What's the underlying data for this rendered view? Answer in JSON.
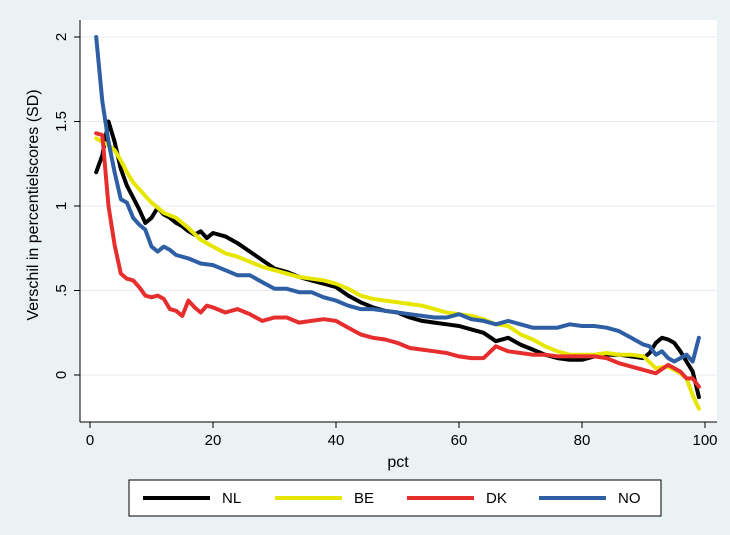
{
  "chart_data": {
    "type": "line",
    "title": "",
    "xlabel": "pct",
    "ylabel": "Verschil in percentielscores (SD)",
    "xlim": [
      0,
      100
    ],
    "ylim": [
      -0.2,
      2
    ],
    "x_ticks": [
      0,
      20,
      40,
      60,
      80,
      100
    ],
    "x_tick_labels": [
      "0",
      "20",
      "40",
      "60",
      "80",
      "100"
    ],
    "y_ticks": [
      0,
      0.5,
      1,
      1.5,
      2
    ],
    "y_tick_labels": [
      "0",
      ".5",
      "1",
      "1.5",
      "2"
    ],
    "grid": true,
    "legend_position": "bottom",
    "series": [
      {
        "name": "NL",
        "color": "#000000",
        "points": [
          [
            1,
            1.2
          ],
          [
            2,
            1.3
          ],
          [
            3,
            1.5
          ],
          [
            4,
            1.38
          ],
          [
            5,
            1.22
          ],
          [
            6,
            1.12
          ],
          [
            7,
            1.05
          ],
          [
            8,
            0.98
          ],
          [
            9,
            0.9
          ],
          [
            10,
            0.93
          ],
          [
            11,
            0.99
          ],
          [
            12,
            0.95
          ],
          [
            13,
            0.93
          ],
          [
            14,
            0.9
          ],
          [
            15,
            0.88
          ],
          [
            16,
            0.85
          ],
          [
            17,
            0.83
          ],
          [
            18,
            0.85
          ],
          [
            19,
            0.81
          ],
          [
            20,
            0.84
          ],
          [
            22,
            0.82
          ],
          [
            24,
            0.78
          ],
          [
            26,
            0.73
          ],
          [
            28,
            0.68
          ],
          [
            30,
            0.63
          ],
          [
            32,
            0.61
          ],
          [
            34,
            0.58
          ],
          [
            36,
            0.56
          ],
          [
            38,
            0.54
          ],
          [
            40,
            0.52
          ],
          [
            42,
            0.47
          ],
          [
            44,
            0.43
          ],
          [
            46,
            0.4
          ],
          [
            48,
            0.38
          ],
          [
            50,
            0.37
          ],
          [
            52,
            0.34
          ],
          [
            54,
            0.32
          ],
          [
            56,
            0.31
          ],
          [
            58,
            0.3
          ],
          [
            60,
            0.29
          ],
          [
            62,
            0.27
          ],
          [
            64,
            0.25
          ],
          [
            66,
            0.2
          ],
          [
            68,
            0.22
          ],
          [
            70,
            0.18
          ],
          [
            72,
            0.15
          ],
          [
            74,
            0.12
          ],
          [
            76,
            0.1
          ],
          [
            78,
            0.09
          ],
          [
            80,
            0.09
          ],
          [
            82,
            0.11
          ],
          [
            84,
            0.12
          ],
          [
            86,
            0.12
          ],
          [
            88,
            0.11
          ],
          [
            90,
            0.1
          ],
          [
            91,
            0.13
          ],
          [
            92,
            0.19
          ],
          [
            93,
            0.22
          ],
          [
            94,
            0.21
          ],
          [
            95,
            0.19
          ],
          [
            96,
            0.14
          ],
          [
            97,
            0.08
          ],
          [
            98,
            0.02
          ],
          [
            99,
            -0.13
          ]
        ]
      },
      {
        "name": "BE",
        "color": "#e6e600",
        "points": [
          [
            1,
            1.4
          ],
          [
            2,
            1.38
          ],
          [
            3,
            1.36
          ],
          [
            4,
            1.33
          ],
          [
            5,
            1.27
          ],
          [
            6,
            1.2
          ],
          [
            7,
            1.14
          ],
          [
            8,
            1.1
          ],
          [
            9,
            1.06
          ],
          [
            10,
            1.02
          ],
          [
            12,
            0.96
          ],
          [
            14,
            0.93
          ],
          [
            16,
            0.87
          ],
          [
            18,
            0.8
          ],
          [
            20,
            0.76
          ],
          [
            22,
            0.72
          ],
          [
            24,
            0.7
          ],
          [
            26,
            0.67
          ],
          [
            28,
            0.64
          ],
          [
            30,
            0.62
          ],
          [
            32,
            0.6
          ],
          [
            34,
            0.58
          ],
          [
            36,
            0.57
          ],
          [
            38,
            0.56
          ],
          [
            40,
            0.54
          ],
          [
            42,
            0.51
          ],
          [
            44,
            0.47
          ],
          [
            46,
            0.45
          ],
          [
            48,
            0.44
          ],
          [
            50,
            0.43
          ],
          [
            52,
            0.42
          ],
          [
            54,
            0.41
          ],
          [
            56,
            0.39
          ],
          [
            58,
            0.37
          ],
          [
            60,
            0.36
          ],
          [
            62,
            0.35
          ],
          [
            64,
            0.33
          ],
          [
            66,
            0.3
          ],
          [
            68,
            0.29
          ],
          [
            70,
            0.24
          ],
          [
            72,
            0.21
          ],
          [
            74,
            0.17
          ],
          [
            76,
            0.14
          ],
          [
            78,
            0.12
          ],
          [
            80,
            0.12
          ],
          [
            82,
            0.12
          ],
          [
            84,
            0.13
          ],
          [
            86,
            0.12
          ],
          [
            88,
            0.12
          ],
          [
            90,
            0.11
          ],
          [
            92,
            0.04
          ],
          [
            94,
            0.05
          ],
          [
            96,
            0.01
          ],
          [
            97,
            -0.02
          ],
          [
            98,
            -0.12
          ],
          [
            99,
            -0.2
          ]
        ]
      },
      {
        "name": "DK",
        "color": "#e62e2e",
        "points": [
          [
            1,
            1.43
          ],
          [
            2,
            1.42
          ],
          [
            3,
            1.0
          ],
          [
            4,
            0.77
          ],
          [
            5,
            0.6
          ],
          [
            6,
            0.57
          ],
          [
            7,
            0.56
          ],
          [
            8,
            0.52
          ],
          [
            9,
            0.47
          ],
          [
            10,
            0.46
          ],
          [
            11,
            0.47
          ],
          [
            12,
            0.45
          ],
          [
            13,
            0.39
          ],
          [
            14,
            0.38
          ],
          [
            15,
            0.35
          ],
          [
            16,
            0.44
          ],
          [
            17,
            0.4
          ],
          [
            18,
            0.37
          ],
          [
            19,
            0.41
          ],
          [
            20,
            0.4
          ],
          [
            22,
            0.37
          ],
          [
            24,
            0.39
          ],
          [
            26,
            0.36
          ],
          [
            28,
            0.32
          ],
          [
            30,
            0.34
          ],
          [
            32,
            0.34
          ],
          [
            34,
            0.31
          ],
          [
            36,
            0.32
          ],
          [
            38,
            0.33
          ],
          [
            40,
            0.32
          ],
          [
            42,
            0.28
          ],
          [
            44,
            0.24
          ],
          [
            46,
            0.22
          ],
          [
            48,
            0.21
          ],
          [
            50,
            0.19
          ],
          [
            52,
            0.16
          ],
          [
            54,
            0.15
          ],
          [
            56,
            0.14
          ],
          [
            58,
            0.13
          ],
          [
            60,
            0.11
          ],
          [
            62,
            0.1
          ],
          [
            64,
            0.1
          ],
          [
            66,
            0.17
          ],
          [
            68,
            0.14
          ],
          [
            70,
            0.13
          ],
          [
            72,
            0.12
          ],
          [
            74,
            0.12
          ],
          [
            76,
            0.11
          ],
          [
            78,
            0.11
          ],
          [
            80,
            0.11
          ],
          [
            82,
            0.11
          ],
          [
            84,
            0.1
          ],
          [
            86,
            0.07
          ],
          [
            88,
            0.05
          ],
          [
            90,
            0.03
          ],
          [
            92,
            0.01
          ],
          [
            94,
            0.06
          ],
          [
            96,
            0.02
          ],
          [
            97,
            -0.02
          ],
          [
            98,
            -0.02
          ],
          [
            99,
            -0.07
          ]
        ]
      },
      {
        "name": "NO",
        "color": "#2e5fa5",
        "points": [
          [
            1,
            2.0
          ],
          [
            2,
            1.62
          ],
          [
            3,
            1.38
          ],
          [
            4,
            1.2
          ],
          [
            5,
            1.04
          ],
          [
            6,
            1.02
          ],
          [
            7,
            0.93
          ],
          [
            8,
            0.89
          ],
          [
            9,
            0.86
          ],
          [
            10,
            0.76
          ],
          [
            11,
            0.73
          ],
          [
            12,
            0.76
          ],
          [
            13,
            0.74
          ],
          [
            14,
            0.71
          ],
          [
            16,
            0.69
          ],
          [
            18,
            0.66
          ],
          [
            20,
            0.65
          ],
          [
            22,
            0.62
          ],
          [
            24,
            0.59
          ],
          [
            26,
            0.59
          ],
          [
            28,
            0.55
          ],
          [
            30,
            0.51
          ],
          [
            32,
            0.51
          ],
          [
            34,
            0.49
          ],
          [
            36,
            0.49
          ],
          [
            38,
            0.46
          ],
          [
            40,
            0.44
          ],
          [
            42,
            0.41
          ],
          [
            44,
            0.39
          ],
          [
            46,
            0.39
          ],
          [
            48,
            0.38
          ],
          [
            50,
            0.37
          ],
          [
            52,
            0.36
          ],
          [
            54,
            0.35
          ],
          [
            56,
            0.34
          ],
          [
            58,
            0.34
          ],
          [
            60,
            0.36
          ],
          [
            62,
            0.33
          ],
          [
            64,
            0.32
          ],
          [
            66,
            0.3
          ],
          [
            68,
            0.32
          ],
          [
            70,
            0.3
          ],
          [
            72,
            0.28
          ],
          [
            74,
            0.28
          ],
          [
            76,
            0.28
          ],
          [
            78,
            0.3
          ],
          [
            80,
            0.29
          ],
          [
            82,
            0.29
          ],
          [
            84,
            0.28
          ],
          [
            86,
            0.26
          ],
          [
            88,
            0.22
          ],
          [
            89,
            0.2
          ],
          [
            90,
            0.18
          ],
          [
            91,
            0.17
          ],
          [
            92,
            0.12
          ],
          [
            93,
            0.14
          ],
          [
            94,
            0.1
          ],
          [
            95,
            0.08
          ],
          [
            96,
            0.1
          ],
          [
            97,
            0.12
          ],
          [
            98,
            0.08
          ],
          [
            99,
            0.22
          ]
        ]
      }
    ]
  }
}
